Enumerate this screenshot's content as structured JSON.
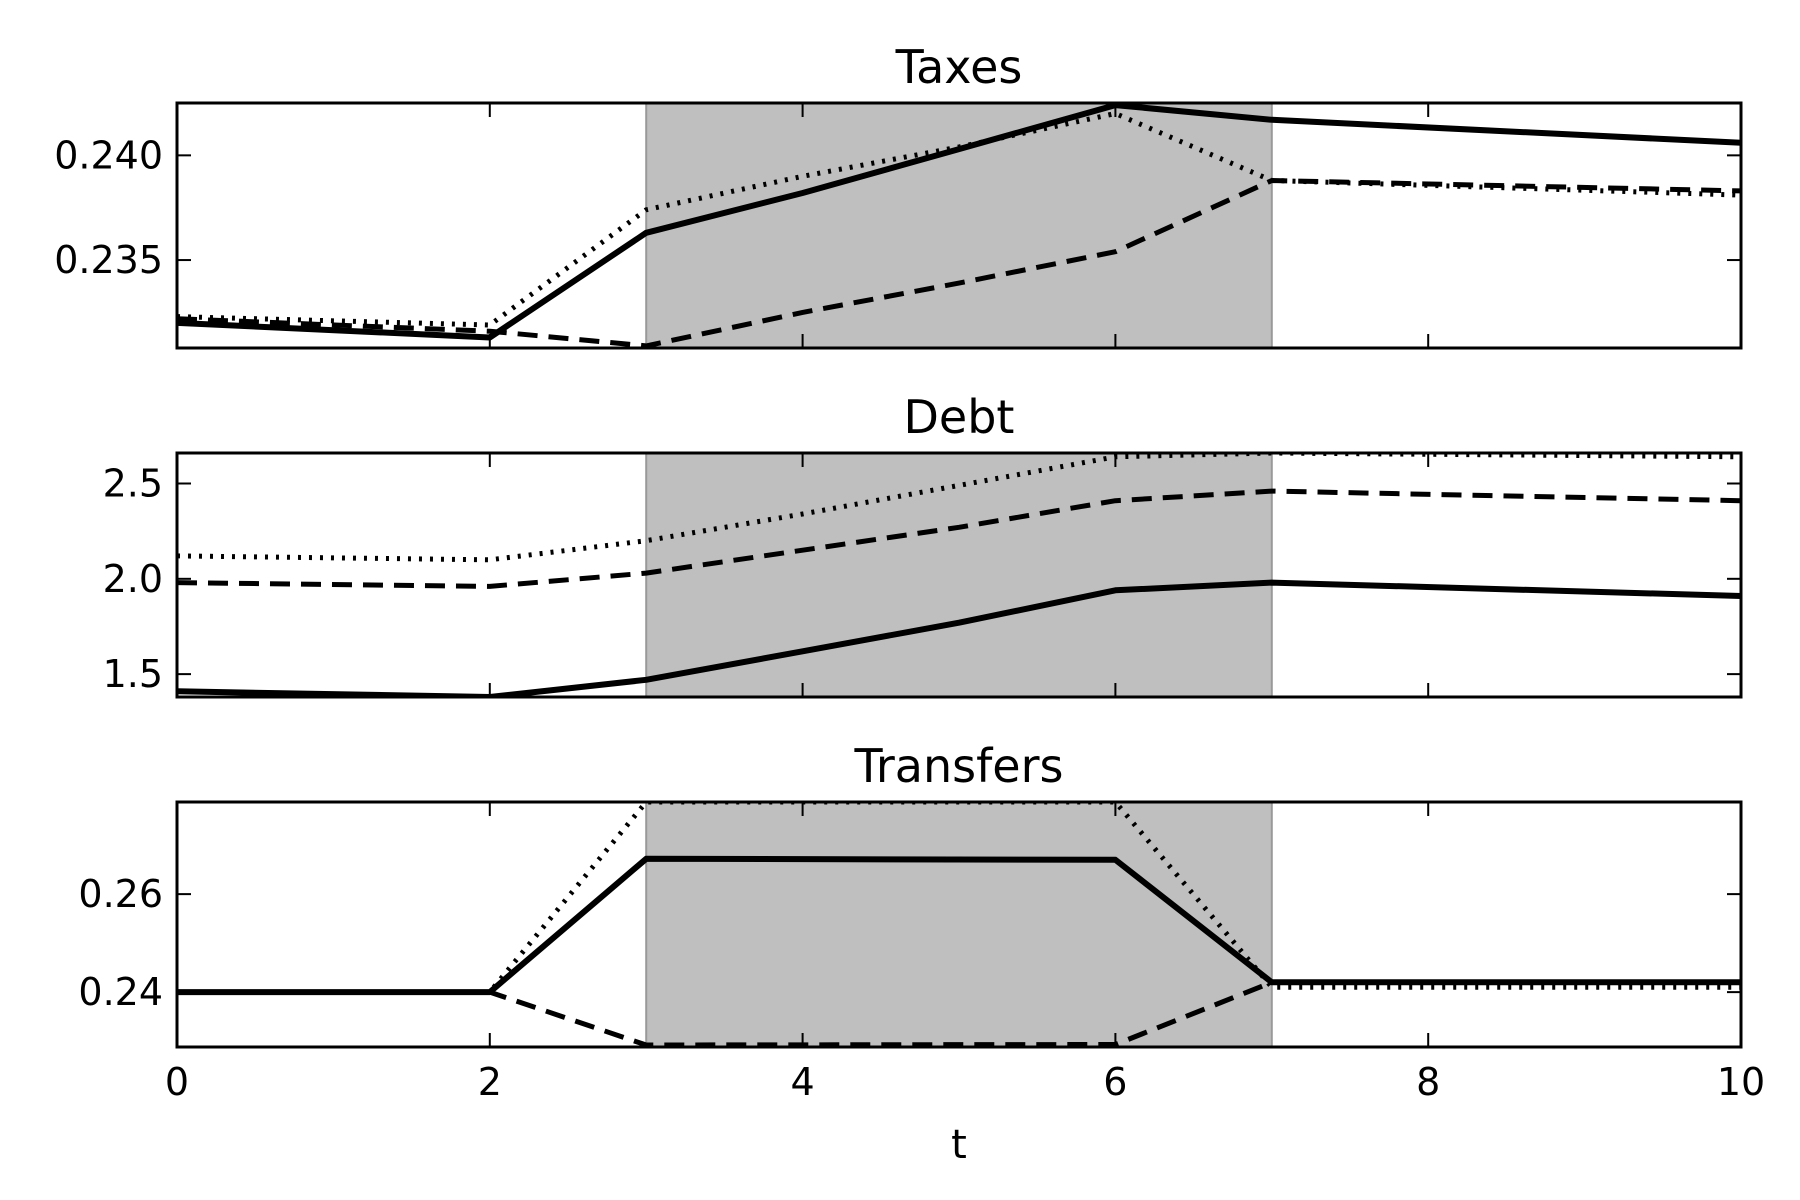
{
  "figure": {
    "xlabel": "t"
  },
  "chart_data": [
    {
      "type": "line",
      "title": "Taxes",
      "xlim": [
        0,
        10
      ],
      "ylim": [
        0.2308,
        0.2425
      ],
      "xticks": [
        0,
        2,
        4,
        6,
        8,
        10
      ],
      "yticks": [
        0.235,
        0.24
      ],
      "ytick_labels": [
        "0.235",
        "0.240"
      ],
      "shaded_region": [
        3,
        7
      ],
      "grid": false,
      "series": [
        {
          "style": "solid",
          "x": [
            0,
            2,
            3,
            4,
            5,
            6,
            7,
            10
          ],
          "y": [
            0.232,
            0.2313,
            0.2363,
            0.2382,
            0.2403,
            0.2424,
            0.2417,
            0.2406
          ]
        },
        {
          "style": "dotted",
          "x": [
            0,
            2,
            3,
            4,
            5,
            6,
            7,
            10
          ],
          "y": [
            0.2323,
            0.2319,
            0.2374,
            0.239,
            0.2404,
            0.242,
            0.2388,
            0.2381
          ]
        },
        {
          "style": "dashed",
          "x": [
            0,
            2,
            3,
            4,
            5,
            6,
            7,
            10
          ],
          "y": [
            0.2322,
            0.2316,
            0.2309,
            0.2325,
            0.2339,
            0.2354,
            0.2388,
            0.2383
          ]
        }
      ]
    },
    {
      "type": "line",
      "title": "Debt",
      "xlim": [
        0,
        10
      ],
      "ylim": [
        1.38,
        2.66
      ],
      "xticks": [
        0,
        2,
        4,
        6,
        8,
        10
      ],
      "yticks": [
        1.5,
        2.0,
        2.5
      ],
      "ytick_labels": [
        "1.5",
        "2.0",
        "2.5"
      ],
      "shaded_region": [
        3,
        7
      ],
      "grid": false,
      "series": [
        {
          "style": "solid",
          "x": [
            0,
            2,
            3,
            4,
            5,
            6,
            7,
            10
          ],
          "y": [
            1.41,
            1.38,
            1.47,
            1.62,
            1.77,
            1.94,
            1.98,
            1.91
          ]
        },
        {
          "style": "dotted",
          "x": [
            0,
            2,
            3,
            4,
            5,
            6,
            7,
            10
          ],
          "y": [
            2.12,
            2.1,
            2.2,
            2.34,
            2.49,
            2.64,
            2.66,
            2.64
          ]
        },
        {
          "style": "dashed",
          "x": [
            0,
            2,
            3,
            4,
            5,
            6,
            7,
            10
          ],
          "y": [
            1.98,
            1.96,
            2.03,
            2.15,
            2.27,
            2.41,
            2.46,
            2.41
          ]
        }
      ]
    },
    {
      "type": "line",
      "title": "Transfers",
      "xlim": [
        0,
        10
      ],
      "ylim": [
        0.2288,
        0.2788
      ],
      "xticks": [
        0,
        2,
        4,
        6,
        8,
        10
      ],
      "xtick_labels": [
        "0",
        "2",
        "4",
        "6",
        "8",
        "10"
      ],
      "yticks": [
        0.24,
        0.26
      ],
      "ytick_labels": [
        "0.24",
        "0.26"
      ],
      "shaded_region": [
        3,
        7
      ],
      "grid": false,
      "series": [
        {
          "style": "solid",
          "x": [
            0,
            2,
            3,
            6,
            7,
            10
          ],
          "y": [
            0.24,
            0.24,
            0.2672,
            0.267,
            0.242,
            0.242
          ]
        },
        {
          "style": "dotted",
          "x": [
            0,
            2,
            3,
            6,
            7,
            10
          ],
          "y": [
            0.24,
            0.24,
            0.2788,
            0.2788,
            0.241,
            0.241
          ]
        },
        {
          "style": "dashed",
          "x": [
            0,
            2,
            3,
            6,
            7,
            10
          ],
          "y": [
            0.24,
            0.24,
            0.2292,
            0.2293,
            0.242,
            0.242
          ]
        }
      ]
    }
  ]
}
